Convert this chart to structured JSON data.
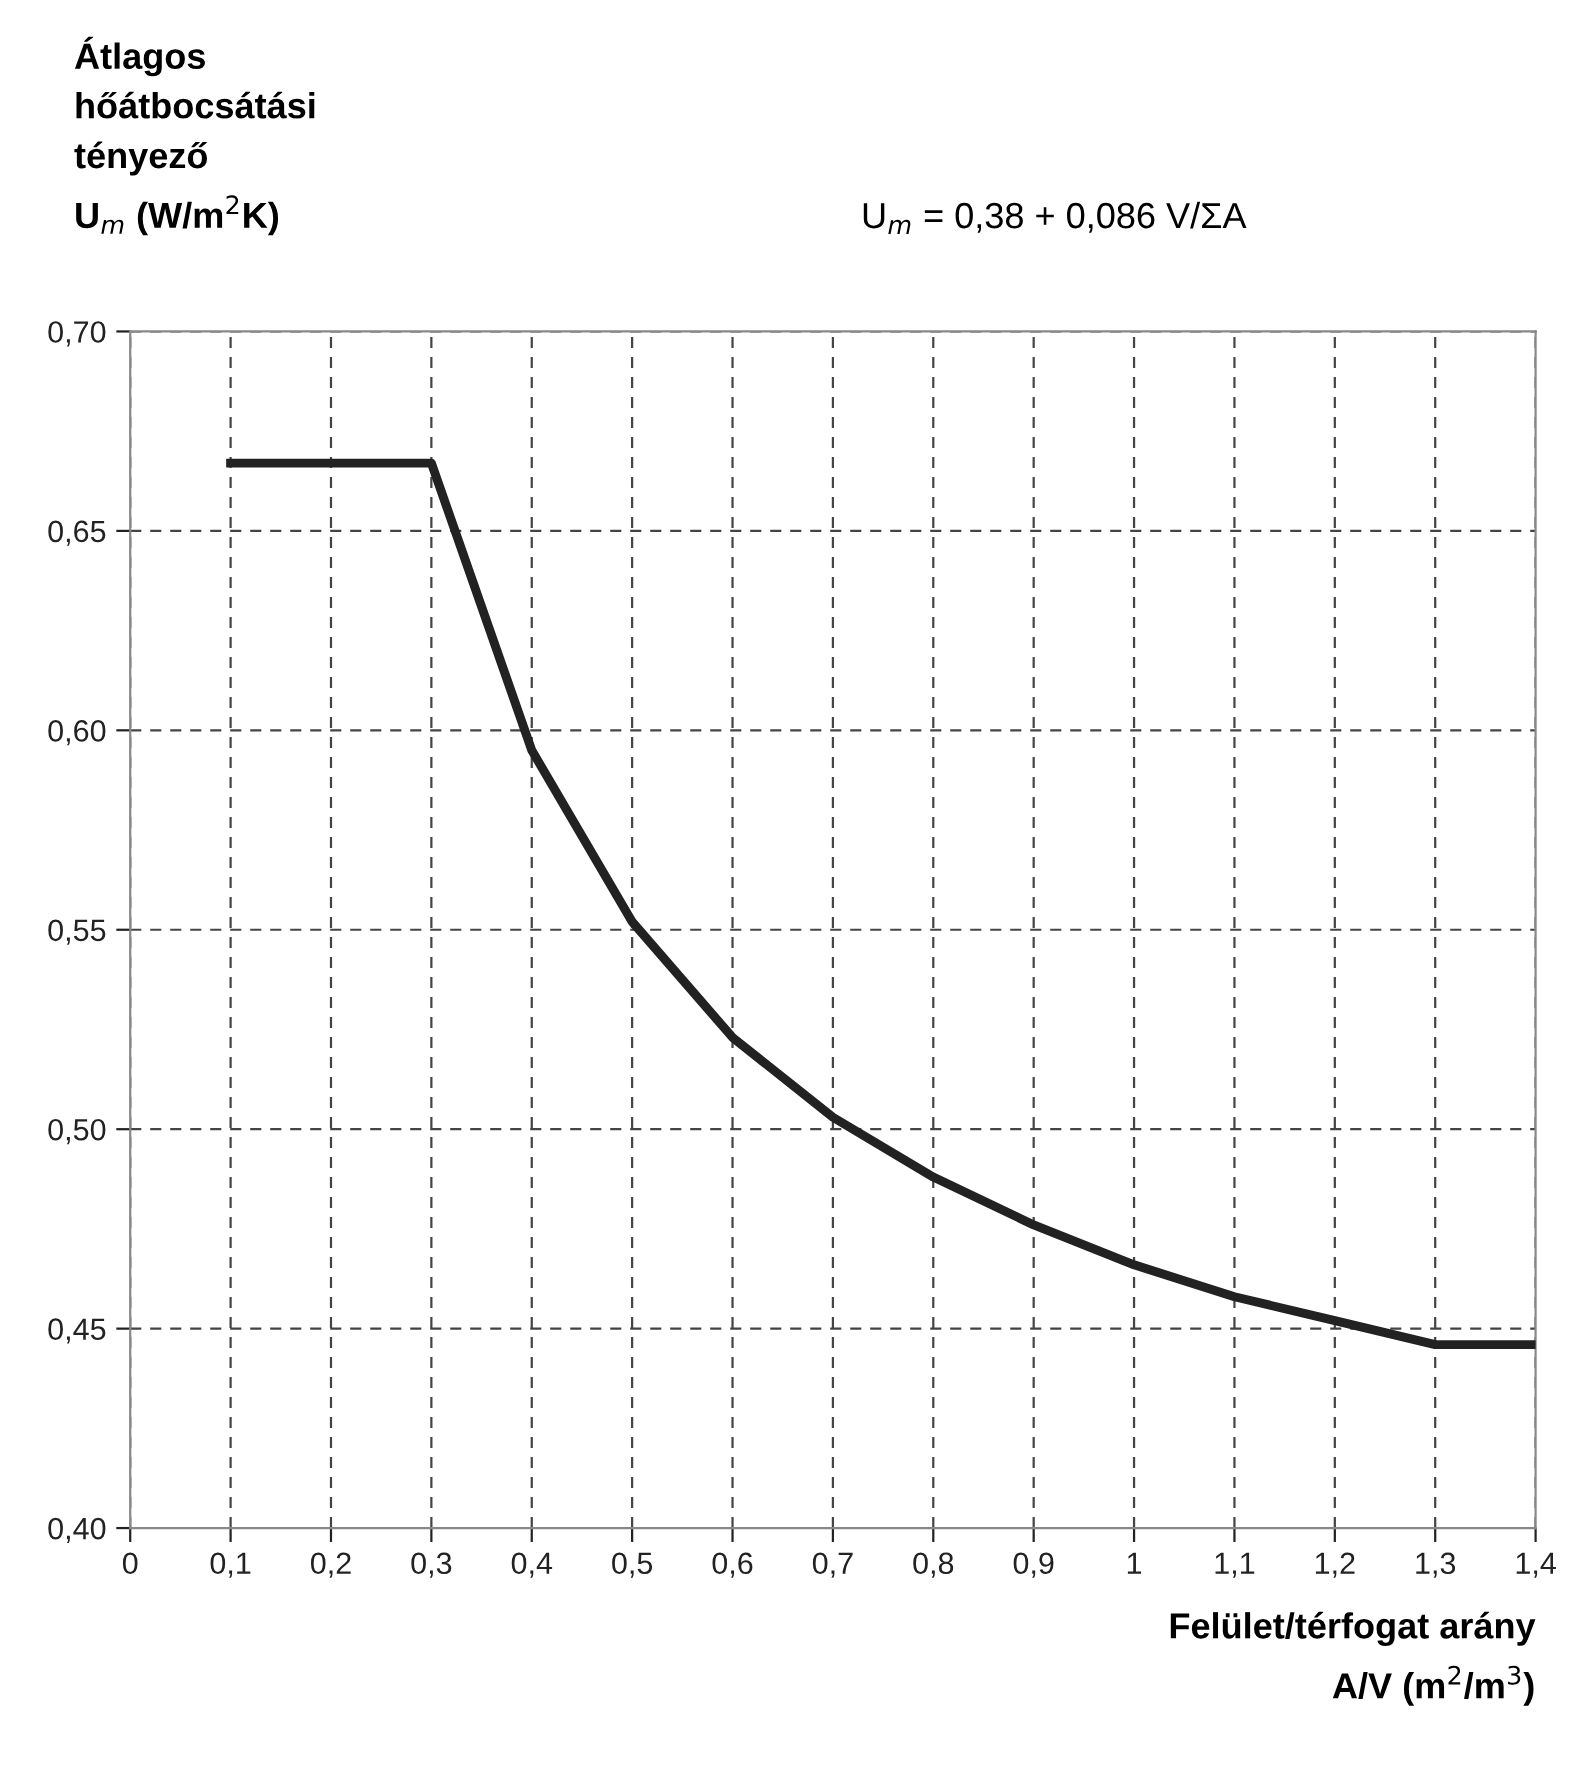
{
  "chart_data": {
    "type": "line",
    "ylabel": "Átlagos\nhőátbocsátási\ntényező\nU$_{m}$ (W/m$^{2}$K)",
    "xlabel": "Felület/térfogat arány\nA/V (m$^{2}$/m$^{3}$)",
    "annotations": [
      "U$_{m}$ = 0,38 + 0,086 V/ΣA"
    ],
    "x": [
      0.1,
      0.2,
      0.3,
      0.4,
      0.5,
      0.6,
      0.7,
      0.8,
      0.9,
      1.0,
      1.1,
      1.2,
      1.3,
      1.4
    ],
    "series": [
      {
        "color": "#222222",
        "values": [
          0.667,
          0.667,
          0.667,
          0.595,
          0.552,
          0.523,
          0.503,
          0.488,
          0.476,
          0.466,
          0.458,
          0.452,
          0.446,
          0.446
        ]
      }
    ],
    "xlim": [
      0,
      1.4
    ],
    "xticks": [
      0,
      {
        "value": 0.1,
        "label": "0,1"
      },
      {
        "value": 0.2,
        "label": "0,2"
      },
      {
        "value": 0.3,
        "label": "0,3"
      },
      {
        "value": 0.4,
        "label": "0,4"
      },
      {
        "value": 0.5,
        "label": "0,5"
      },
      {
        "value": 0.6,
        "label": "0,6"
      },
      {
        "value": 0.7,
        "label": "0,7"
      },
      {
        "value": 0.8,
        "label": "0,8"
      },
      {
        "value": 0.9,
        "label": "0,9"
      },
      1,
      {
        "value": 1.1,
        "label": "1,1"
      },
      {
        "value": 1.2,
        "label": "1,2"
      },
      {
        "value": 1.3,
        "label": "1,3"
      },
      {
        "value": 1.4,
        "label": "1,4"
      }
    ],
    "ylim": [
      0.4,
      0.7
    ],
    "yticks": [
      {
        "value": 0.4,
        "label": "0,40"
      },
      {
        "value": 0.45,
        "label": "0,45"
      },
      {
        "value": 0.5,
        "label": "0,50"
      },
      {
        "value": 0.55,
        "label": "0,55"
      },
      {
        "value": 0.6,
        "label": "0,60"
      },
      {
        "value": 0.65,
        "label": "0,65"
      },
      {
        "value": 0.7,
        "label": "0,70"
      }
    ],
    "grid": true,
    "line_style": "solid",
    "marker": "none",
    "legend": false
  }
}
